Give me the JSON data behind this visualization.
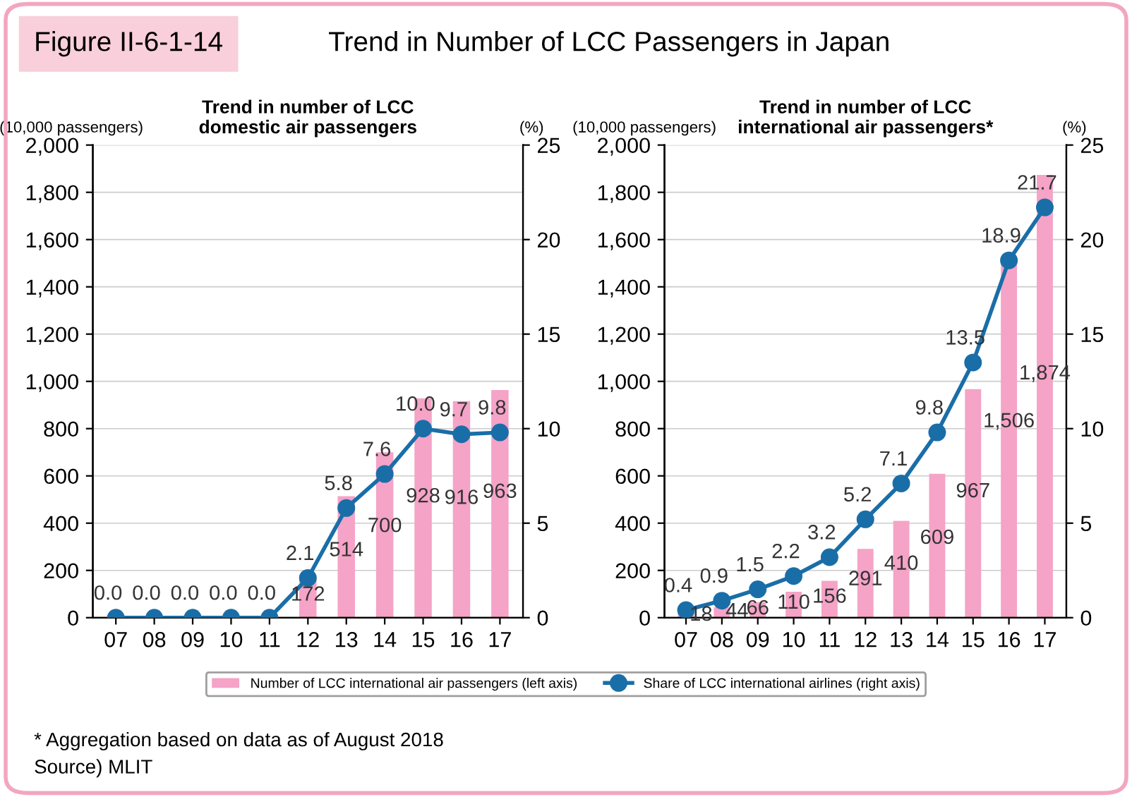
{
  "chart_data": [
    {
      "type": "bar",
      "title": "Trend in number of LCC\ndomestic air passengers",
      "ylabel": "(10,000 passengers)",
      "y2label": "(%)",
      "annotations": [
        "Figure II-6-1-14",
        "Trend in Number of LCC Passengers in Japan"
      ],
      "categories": [
        "07",
        "08",
        "09",
        "10",
        "11",
        "12",
        "13",
        "14",
        "15",
        "16",
        "17"
      ],
      "series": [
        {
          "color": "#f5a3c7",
          "values": [
            null,
            null,
            null,
            null,
            null,
            172,
            514,
            700,
            928,
            916,
            963
          ],
          "value_labels": [
            null,
            null,
            null,
            null,
            null,
            "172",
            "514",
            "700",
            "928",
            "916",
            "963"
          ]
        },
        {
          "type": "line",
          "axis": "y2",
          "color": "#1a6ea8",
          "values": [
            0.0,
            0.0,
            0.0,
            0.0,
            0.0,
            2.1,
            5.8,
            7.6,
            10.0,
            9.7,
            9.8
          ],
          "value_labels": [
            "0.0",
            "0.0",
            "0.0",
            "0.0",
            "0.0",
            "2.1",
            "5.8",
            "7.6",
            "10.0",
            "9.7",
            "9.8"
          ]
        }
      ],
      "ylim": [
        0,
        2000
      ],
      "yticks": [
        0,
        {
          "value": 200,
          "label": "200"
        },
        {
          "value": 400,
          "label": "400"
        },
        {
          "value": 600,
          "label": "600"
        },
        {
          "value": 800,
          "label": "800"
        },
        {
          "value": 1000,
          "label": "1,000"
        },
        {
          "value": 1200,
          "label": "1,200"
        },
        {
          "value": 1400,
          "label": "1,400"
        },
        {
          "value": 1600,
          "label": "1,600"
        },
        {
          "value": 1800,
          "label": "1,800"
        },
        {
          "value": 2000,
          "label": "2,000"
        }
      ],
      "y2lim": [
        0,
        25
      ],
      "y2ticks": [
        0,
        5,
        10,
        15,
        20,
        25
      ],
      "marker": "circle",
      "grid": "y"
    },
    {
      "type": "bar",
      "title": "Trend in number of LCC\ninternational air passengers*",
      "ylabel": "(10,000 passengers)",
      "y2label": "(%)",
      "annotations": [
        "* Aggregation based on data as of August 2018",
        "Source) MLIT"
      ],
      "categories": [
        "07",
        "08",
        "09",
        "10",
        "11",
        "12",
        "13",
        "14",
        "15",
        "16",
        "17"
      ],
      "series": [
        {
          "name": "Number of LCC international air passengers (left axis)",
          "color": "#f5a3c7",
          "values": [
            18,
            44,
            66,
            110,
            156,
            291,
            410,
            609,
            967,
            1506,
            1874
          ],
          "value_labels": [
            "18",
            "44",
            "66",
            "110",
            "156",
            "291",
            "410",
            "609",
            "967",
            "1,506",
            "1,874"
          ]
        },
        {
          "type": "line",
          "axis": "y2",
          "name": "Share of LCC international airlines (right axis)",
          "color": "#1a6ea8",
          "values": [
            0.4,
            0.9,
            1.5,
            2.2,
            3.2,
            5.2,
            7.1,
            9.8,
            13.5,
            18.9,
            21.7
          ],
          "value_labels": [
            "0.4",
            "0.9",
            "1.5",
            "2.2",
            "3.2",
            "5.2",
            "7.1",
            "9.8",
            "13.5",
            "18.9",
            "21.7"
          ]
        }
      ],
      "ylim": [
        0,
        2000
      ],
      "yticks": [
        0,
        {
          "value": 200,
          "label": "200"
        },
        {
          "value": 400,
          "label": "400"
        },
        {
          "value": 600,
          "label": "600"
        },
        {
          "value": 800,
          "label": "800"
        },
        {
          "value": 1000,
          "label": "1,000"
        },
        {
          "value": 1200,
          "label": "1,200"
        },
        {
          "value": 1400,
          "label": "1,400"
        },
        {
          "value": 1600,
          "label": "1,600"
        },
        {
          "value": 1800,
          "label": "1,800"
        },
        {
          "value": 2000,
          "label": "2,000"
        }
      ],
      "y2lim": [
        0,
        25
      ],
      "y2ticks": [
        0,
        5,
        10,
        15,
        20,
        25
      ],
      "marker": "circle",
      "grid": "y",
      "legend": "bottom"
    }
  ]
}
